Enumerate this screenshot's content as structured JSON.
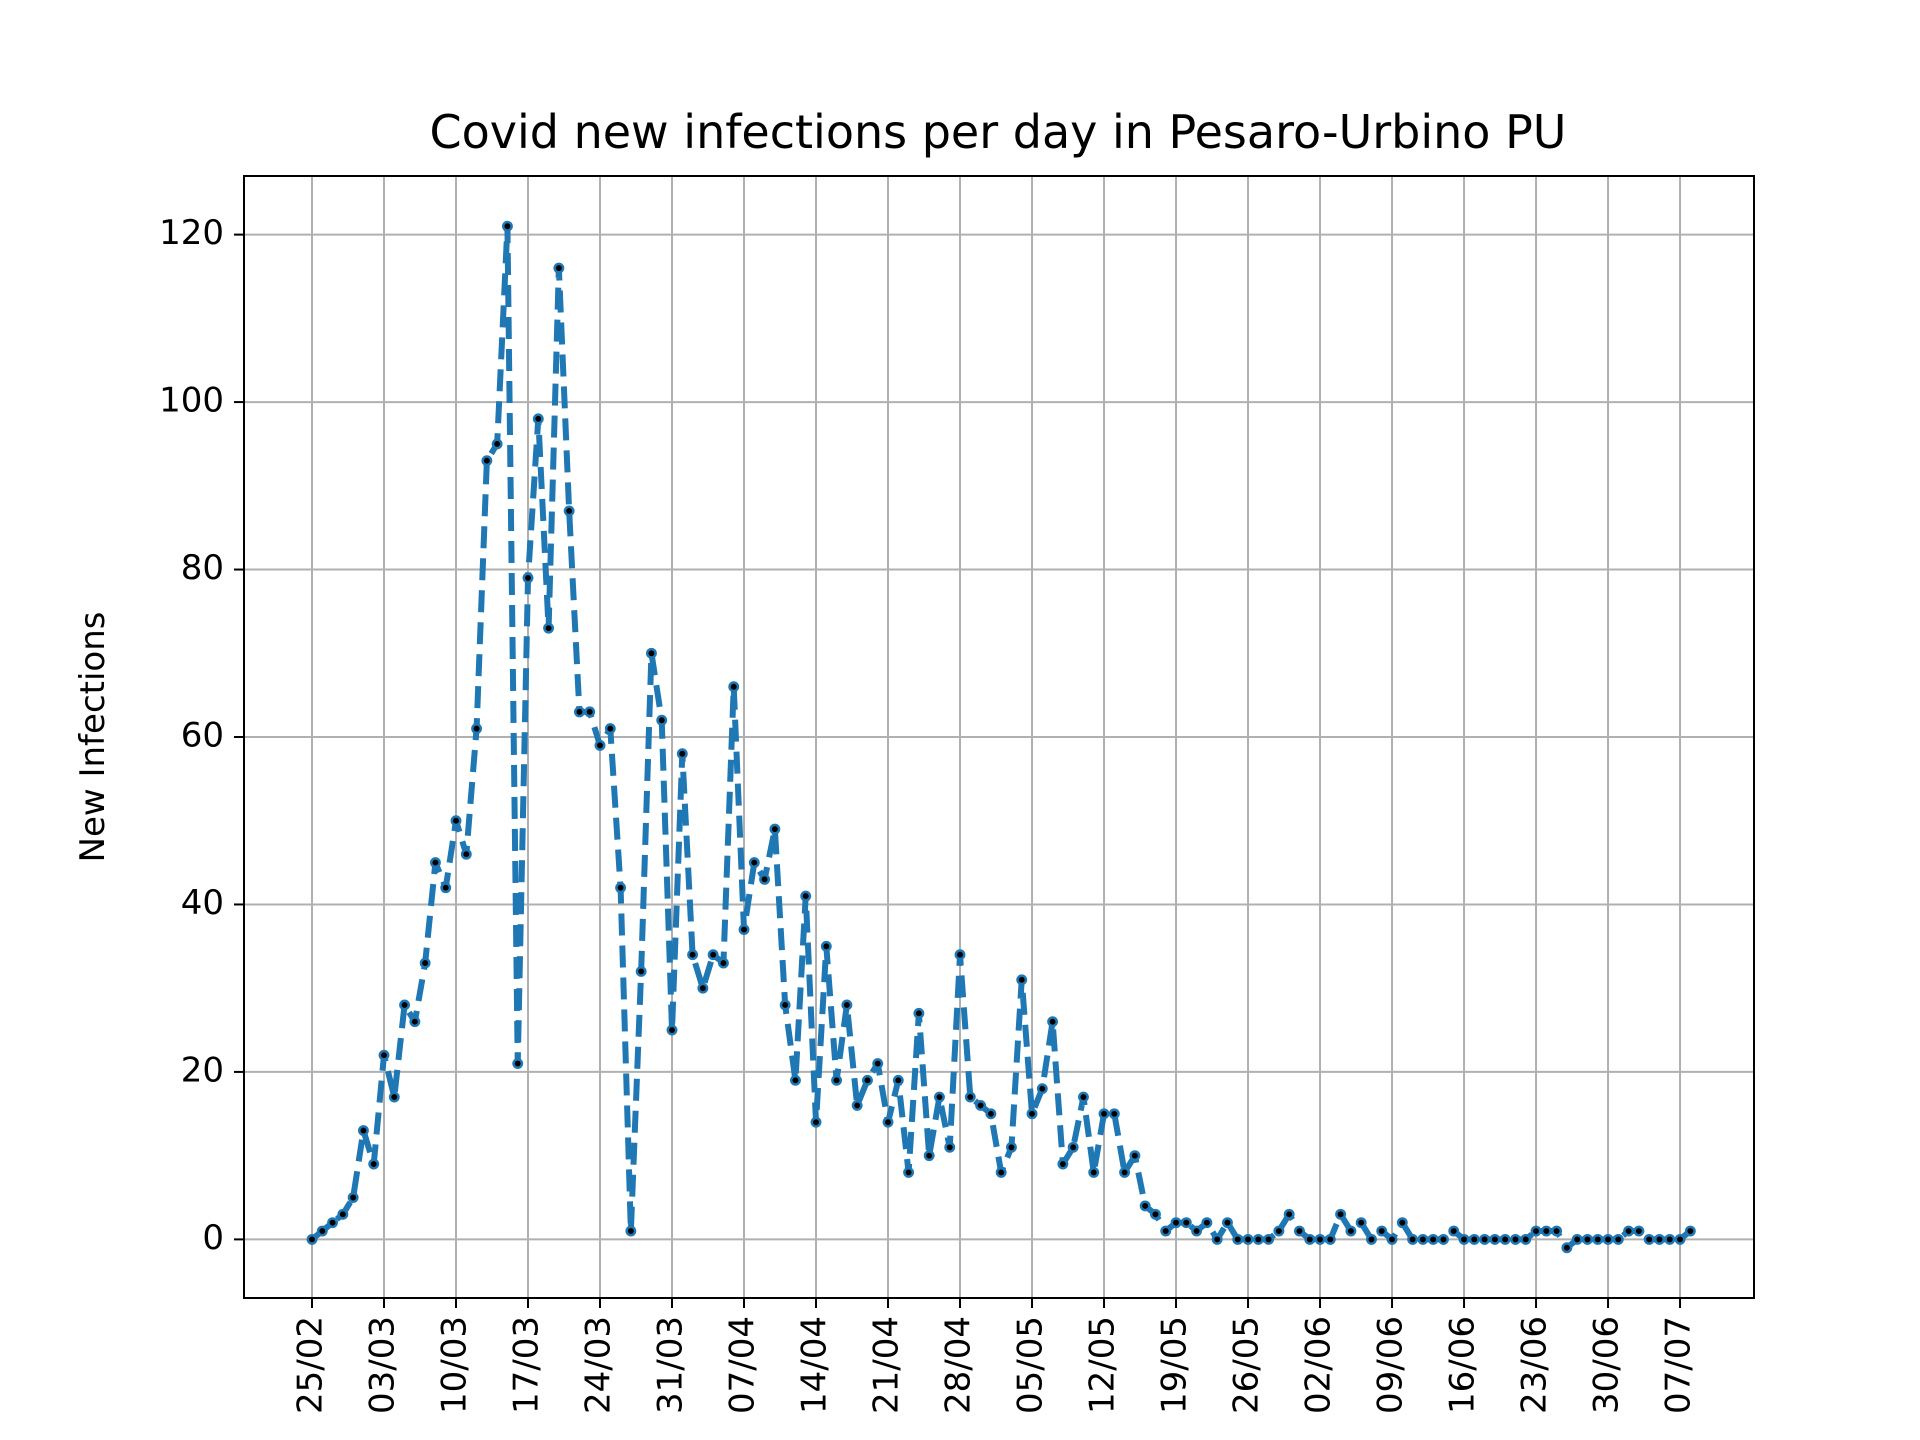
{
  "chart_data": {
    "type": "line",
    "title": "Covid new infections per day in Pesaro-Urbino PU",
    "xlabel": "",
    "ylabel": "New Infections",
    "x_start_date": "2020-02-25",
    "x_tick_labels": [
      "25/02",
      "03/03",
      "10/03",
      "17/03",
      "24/03",
      "31/03",
      "07/04",
      "14/04",
      "21/04",
      "28/04",
      "05/05",
      "12/05",
      "19/05",
      "26/05",
      "02/06",
      "09/06",
      "16/06",
      "23/06",
      "30/06",
      "07/07"
    ],
    "y_ticks": [
      0,
      20,
      40,
      60,
      80,
      100,
      120
    ],
    "ylim": [
      -7,
      127
    ],
    "grid": true,
    "series": [
      {
        "color": "#1f77b4",
        "marker_color": "#000000",
        "line_style": "dashed",
        "values": [
          0,
          1,
          2,
          3,
          5,
          13,
          9,
          22,
          17,
          28,
          26,
          33,
          45,
          42,
          50,
          46,
          61,
          93,
          95,
          121,
          21,
          79,
          98,
          73,
          116,
          87,
          63,
          63,
          59,
          61,
          42,
          1,
          32,
          70,
          62,
          25,
          58,
          34,
          30,
          34,
          33,
          66,
          37,
          45,
          43,
          49,
          28,
          19,
          41,
          14,
          35,
          19,
          28,
          16,
          19,
          21,
          14,
          19,
          8,
          27,
          10,
          17,
          11,
          34,
          17,
          16,
          15,
          8,
          11,
          31,
          15,
          18,
          26,
          9,
          11,
          17,
          8,
          15,
          15,
          8,
          10,
          4,
          3,
          1,
          2,
          2,
          1,
          2,
          0,
          2,
          0,
          0,
          0,
          0,
          1,
          3,
          1,
          0,
          0,
          0,
          3,
          1,
          2,
          0,
          1,
          0,
          2,
          0,
          0,
          0,
          0,
          1,
          0,
          0,
          0,
          0,
          0,
          0,
          0,
          1,
          1,
          1,
          -1,
          0,
          0,
          0,
          0,
          0,
          1,
          1,
          0,
          0,
          0,
          0,
          1
        ]
      }
    ]
  }
}
